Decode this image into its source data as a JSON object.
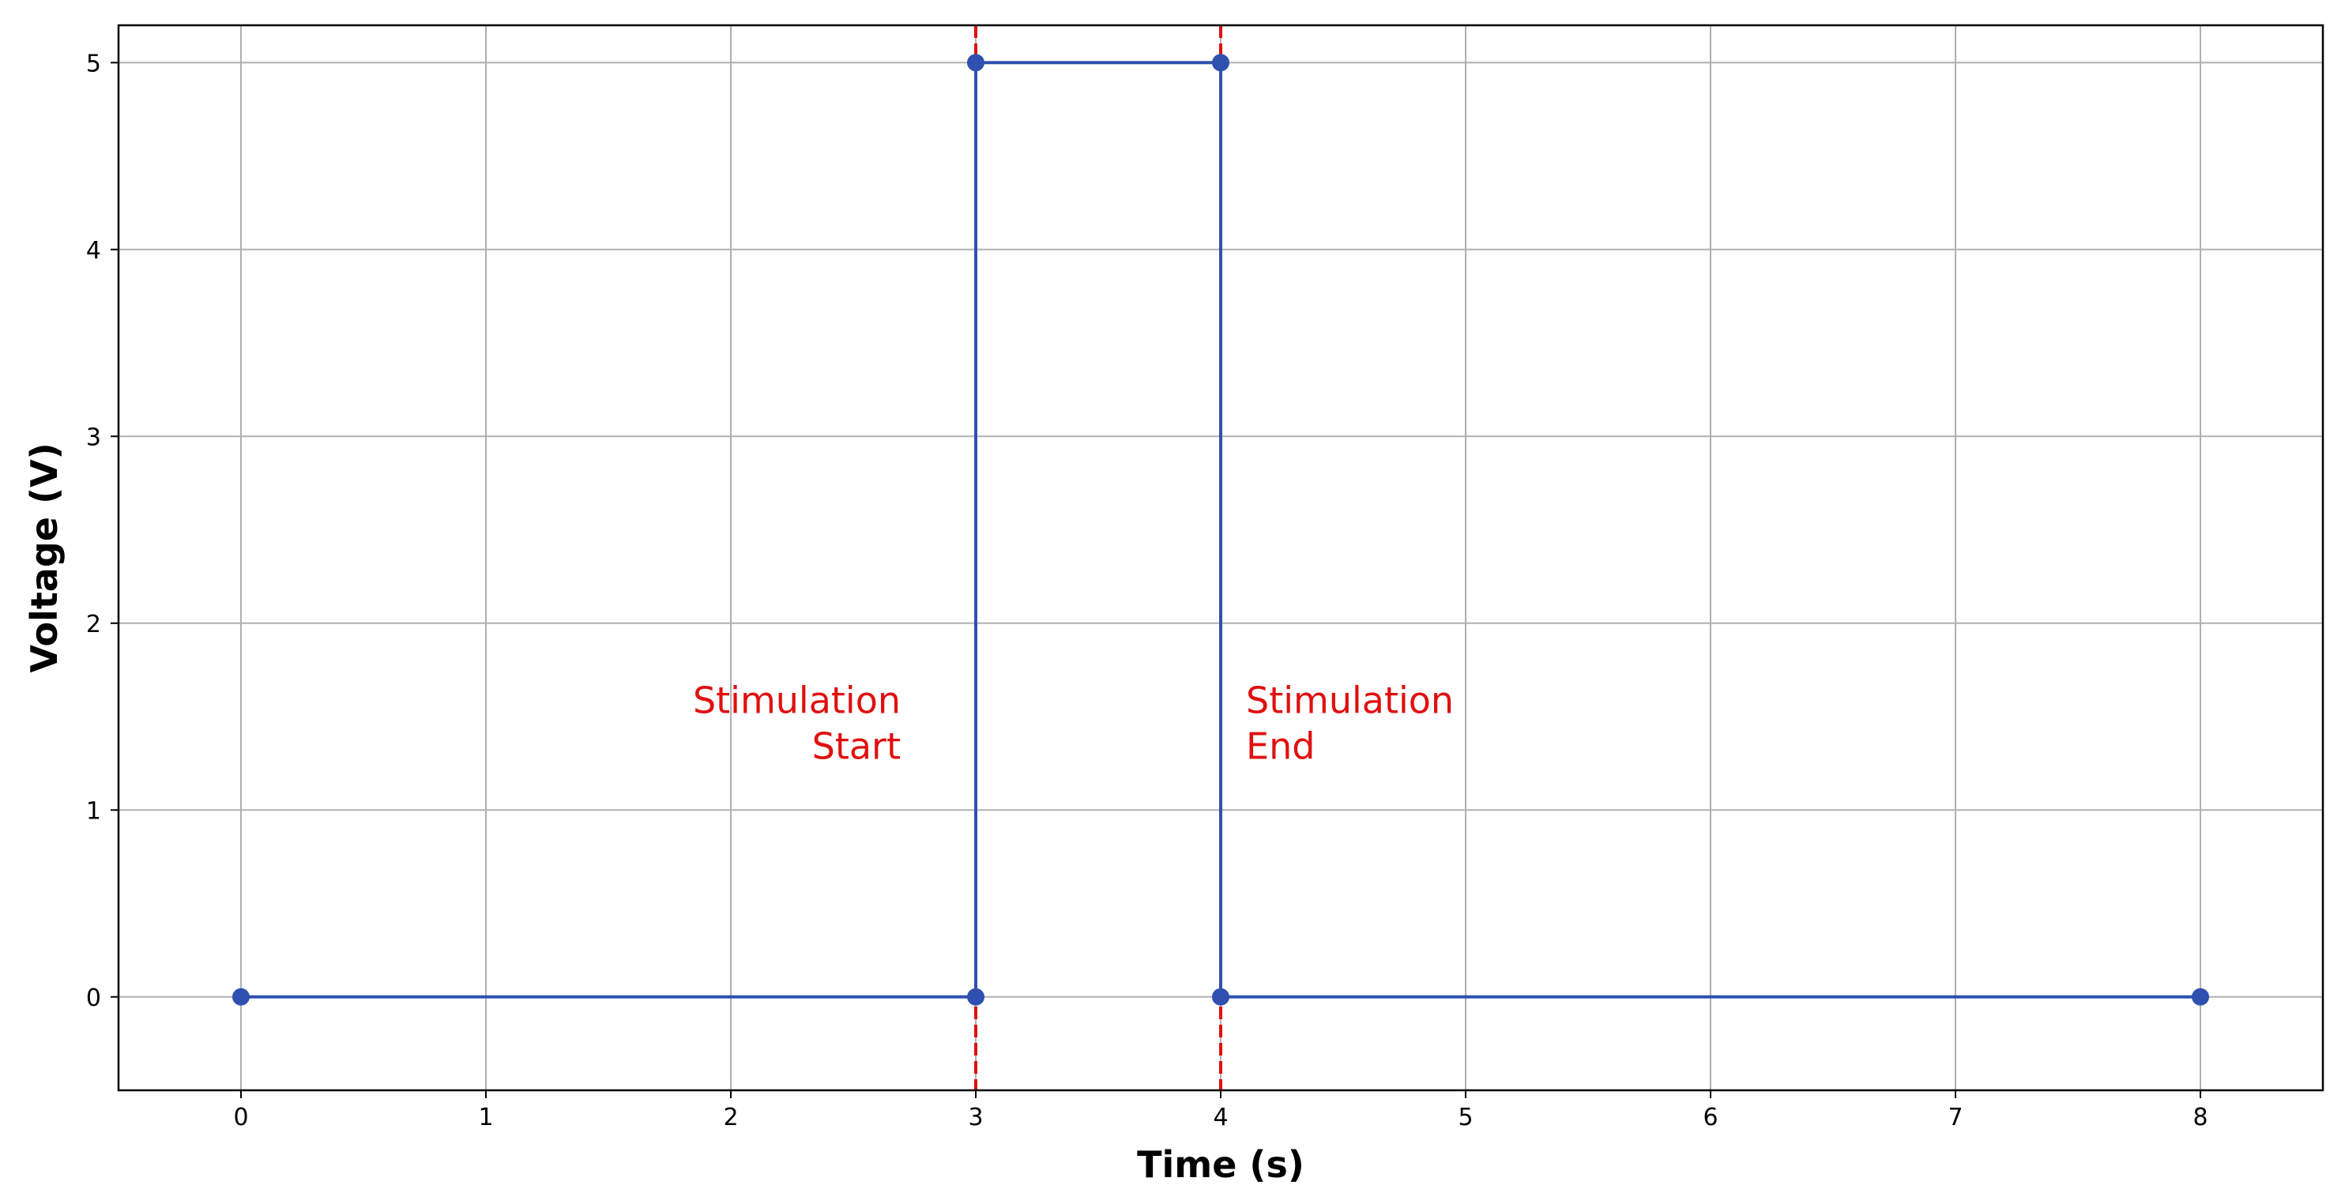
{
  "chart_data": {
    "type": "line",
    "title": "",
    "xlabel": "Time (s)",
    "ylabel": "Voltage (V)",
    "xlim": [
      -0.5,
      8.5
    ],
    "ylim": [
      -0.5,
      5.2
    ],
    "x_ticks": [
      0,
      1,
      2,
      3,
      4,
      5,
      6,
      7,
      8
    ],
    "y_ticks": [
      0,
      1,
      2,
      3,
      4,
      5
    ],
    "grid": true,
    "series": [
      {
        "color": "#3050b0",
        "marker": "circle",
        "x": [
          0,
          3,
          3,
          4,
          4,
          8
        ],
        "y": [
          0,
          0,
          5,
          5,
          0,
          0
        ]
      }
    ],
    "vlines": [
      {
        "x": 3,
        "style": "dashed",
        "color": "#e01010"
      },
      {
        "x": 4,
        "style": "dashed",
        "color": "#e01010"
      }
    ],
    "annotations": [
      {
        "lines": [
          "Stimulation",
          "Start"
        ],
        "x": 3,
        "y": 1.35,
        "align": "right",
        "color": "#e01010"
      },
      {
        "lines": [
          "Stimulation",
          "End"
        ],
        "x": 4,
        "y": 1.35,
        "align": "left",
        "color": "#e01010"
      }
    ]
  }
}
